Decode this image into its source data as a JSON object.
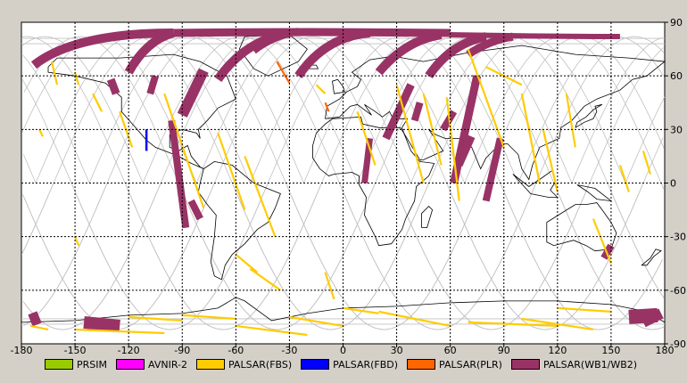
{
  "x_ticks": [
    "-180",
    "-150",
    "-120",
    "-90",
    "-60",
    "-30",
    "0",
    "30",
    "60",
    "90",
    "120",
    "150",
    "180"
  ],
  "y_ticks": [
    "90",
    "60",
    "30",
    "0",
    "-30",
    "-60",
    "-90"
  ],
  "legend": [
    {
      "label": "PRSIM",
      "color": "#99cc00"
    },
    {
      "label": "AVNIR-2",
      "color": "#ff00ff"
    },
    {
      "label": "PALSAR(FBS)",
      "color": "#ffcc00"
    },
    {
      "label": "PALSAR(FBD)",
      "color": "#0000ff"
    },
    {
      "label": "PALSAR(PLR)",
      "color": "#ff6600"
    },
    {
      "label": "PALSAR(WB1/WB2)",
      "color": "#993366"
    }
  ],
  "colors": {
    "map_background": "#ffffff",
    "grid": "#000000",
    "orbit_track": "#c0c0c0",
    "coastline": "#000000",
    "wb_swath": "#993366",
    "fbs_swath": "#ffcc00",
    "plr_swath": "#ff6600",
    "fbd_swath": "#0000ff"
  }
}
